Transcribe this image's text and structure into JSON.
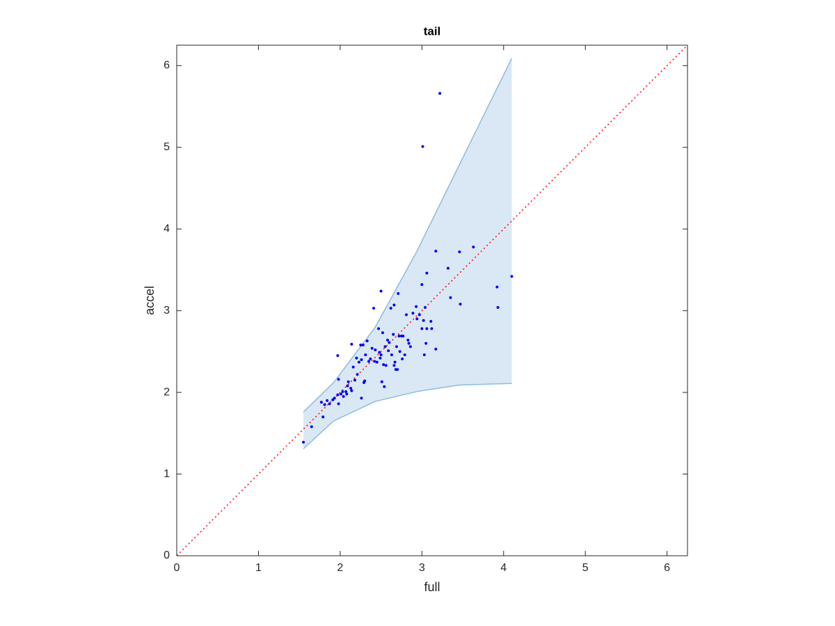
{
  "chart_data": {
    "type": "scatter",
    "title": "tail",
    "xlabel": "full",
    "ylabel": "accel",
    "xlim": [
      0,
      6.25
    ],
    "ylim": [
      0,
      6.25
    ],
    "xticks": [
      0,
      1,
      2,
      3,
      4,
      5,
      6
    ],
    "yticks": [
      0,
      1,
      2,
      3,
      4,
      5,
      6
    ],
    "grid": false,
    "color": "#0000ff",
    "x": [
      1.55,
      1.65,
      1.77,
      1.79,
      1.81,
      1.84,
      1.87,
      1.91,
      1.93,
      1.97,
      1.97,
      1.98,
      1.98,
      2.01,
      2.03,
      2.04,
      2.07,
      2.08,
      2.09,
      2.1,
      2.13,
      2.14,
      2.14,
      2.16,
      2.18,
      2.2,
      2.21,
      2.23,
      2.25,
      2.26,
      2.26,
      2.28,
      2.29,
      2.3,
      2.31,
      2.33,
      2.35,
      2.37,
      2.39,
      2.41,
      2.42,
      2.43,
      2.45,
      2.47,
      2.48,
      2.49,
      2.5,
      2.5,
      2.51,
      2.52,
      2.53,
      2.54,
      2.55,
      2.56,
      2.58,
      2.59,
      2.6,
      2.62,
      2.63,
      2.65,
      2.66,
      2.66,
      2.67,
      2.68,
      2.69,
      2.7,
      2.71,
      2.72,
      2.73,
      2.75,
      2.76,
      2.77,
      2.79,
      2.81,
      2.83,
      2.84,
      2.86,
      2.89,
      2.93,
      2.94,
      2.97,
      3.0,
      3.0,
      3.01,
      3.02,
      3.03,
      3.04,
      3.05,
      3.06,
      3.06,
      3.11,
      3.12,
      3.17,
      3.17,
      3.22,
      3.32,
      3.35,
      3.46,
      3.47,
      3.63,
      3.92,
      3.93,
      4.1
    ],
    "values": [
      1.39,
      1.58,
      1.88,
      1.7,
      1.85,
      1.9,
      1.86,
      1.91,
      1.93,
      1.97,
      2.45,
      1.86,
      2.16,
      1.98,
      2.01,
      1.95,
      2.01,
      1.98,
      2.08,
      2.13,
      2.05,
      2.02,
      2.59,
      2.31,
      2.15,
      2.42,
      2.22,
      2.37,
      2.58,
      2.4,
      1.93,
      2.58,
      2.12,
      2.14,
      2.46,
      2.63,
      2.38,
      2.41,
      2.54,
      3.03,
      2.38,
      2.52,
      2.37,
      2.78,
      2.49,
      2.42,
      3.24,
      2.46,
      2.13,
      2.73,
      2.34,
      2.07,
      2.56,
      2.33,
      2.64,
      2.51,
      2.61,
      3.03,
      2.46,
      2.71,
      2.33,
      3.07,
      2.37,
      2.28,
      2.56,
      2.28,
      3.21,
      2.69,
      2.5,
      2.69,
      2.41,
      2.69,
      2.46,
      2.95,
      2.64,
      2.6,
      2.56,
      2.97,
      3.05,
      2.9,
      2.95,
      2.78,
      3.32,
      5.01,
      2.88,
      2.46,
      3.04,
      2.6,
      2.78,
      3.46,
      2.87,
      2.78,
      2.53,
      3.73,
      5.66,
      3.52,
      3.16,
      3.72,
      3.08,
      3.78,
      3.29,
      3.04,
      3.42
    ],
    "band": {
      "x": [
        1.55,
        1.92,
        2.43,
        2.94,
        3.46,
        4.1
      ],
      "upper": [
        1.76,
        2.12,
        2.8,
        3.73,
        4.79,
        6.09
      ],
      "lower": [
        1.31,
        1.65,
        1.89,
        2.01,
        2.09,
        2.11
      ],
      "color": "#8bbbe0",
      "fill": "#d9e8f4"
    },
    "reference": {
      "x": [
        0,
        6.25
      ],
      "values": [
        0,
        6.25
      ],
      "color": "#ff0000"
    }
  }
}
